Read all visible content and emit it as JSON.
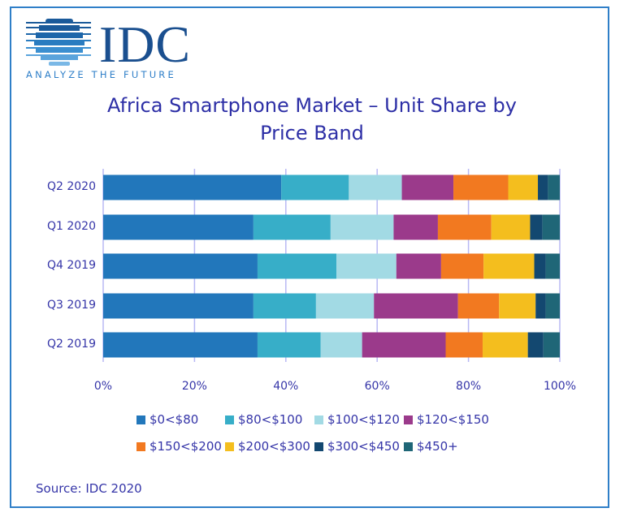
{
  "logo": {
    "text": "IDC",
    "tagline": "ANALYZE THE FUTURE"
  },
  "title_line1": "Africa Smartphone Market – Unit Share by",
  "title_line2": "Price Band",
  "source": "Source: IDC 2020",
  "chart_data": {
    "type": "bar",
    "orientation": "horizontal",
    "stacked": true,
    "title": "Africa Smartphone Market – Unit Share by Price Band",
    "categories": [
      "Q2 2020",
      "Q1 2020",
      "Q4 2019",
      "Q3 2019",
      "Q2 2019"
    ],
    "xlim": [
      0,
      100
    ],
    "xticks": [
      "0%",
      "20%",
      "40%",
      "60%",
      "80%",
      "100%"
    ],
    "grid": true,
    "legend_position": "bottom",
    "series": [
      {
        "name": "$0<$80",
        "color": "#2277bb",
        "values": [
          39.0,
          32.9,
          33.8,
          32.9,
          33.8
        ]
      },
      {
        "name": "$80<$100",
        "color": "#37aec8",
        "values": [
          14.8,
          16.9,
          17.3,
          13.7,
          13.8
        ]
      },
      {
        "name": "$100<$120",
        "color": "#a2dae4",
        "values": [
          11.6,
          13.8,
          13.1,
          12.7,
          9.1
        ]
      },
      {
        "name": "$120<$150",
        "color": "#9b3a8b",
        "values": [
          11.3,
          9.7,
          9.8,
          18.4,
          18.3
        ]
      },
      {
        "name": "$150<$200",
        "color": "#f27920",
        "values": [
          12.0,
          11.7,
          9.3,
          9.0,
          8.1
        ]
      },
      {
        "name": "$200<$300",
        "color": "#f4be1e",
        "values": [
          6.5,
          8.5,
          11.1,
          8.0,
          9.9
        ]
      },
      {
        "name": "$300<$450",
        "color": "#134870",
        "values": [
          2.2,
          2.7,
          2.5,
          2.2,
          3.4
        ]
      },
      {
        "name": "$450+",
        "color": "#1f6677",
        "values": [
          2.6,
          3.8,
          3.1,
          3.1,
          3.6
        ]
      }
    ]
  }
}
